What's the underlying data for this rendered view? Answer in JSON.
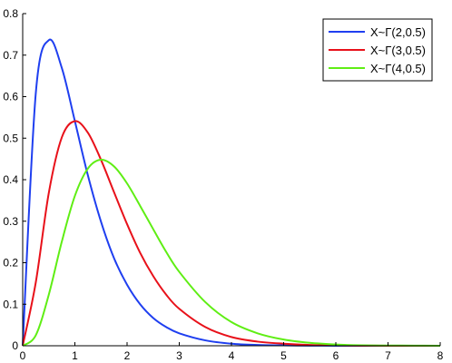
{
  "chart_data": {
    "type": "line",
    "title": "",
    "xlabel": "",
    "ylabel": "",
    "xlim": [
      0,
      8
    ],
    "ylim": [
      0,
      0.8
    ],
    "xticks": [
      0,
      1,
      2,
      3,
      4,
      5,
      6,
      7,
      8
    ],
    "yticks": [
      0,
      0.1,
      0.2,
      0.3,
      0.4,
      0.5,
      0.6,
      0.7,
      0.8
    ],
    "grid": false,
    "legend_position": "top-right",
    "x": [
      0,
      0.25,
      0.5,
      0.75,
      1,
      1.25,
      1.5,
      1.75,
      2,
      2.25,
      2.5,
      2.75,
      3,
      3.5,
      4,
      4.5,
      5,
      5.5,
      6,
      6.5,
      7,
      7.5,
      8
    ],
    "series": [
      {
        "name": "X~Γ(2,0.5)",
        "color": "#1f3ff0",
        "values": [
          0,
          0.607,
          0.736,
          0.669,
          0.541,
          0.41,
          0.299,
          0.211,
          0.147,
          0.1,
          0.067,
          0.045,
          0.03,
          0.013,
          0.005,
          0.002,
          0.001,
          0.0003,
          0.0001,
          0,
          0,
          0,
          0
        ]
      },
      {
        "name": "X~Γ(3,0.5)",
        "color": "#e8111a",
        "values": [
          0,
          0.152,
          0.368,
          0.502,
          0.541,
          0.513,
          0.448,
          0.37,
          0.293,
          0.224,
          0.168,
          0.123,
          0.089,
          0.045,
          0.021,
          0.01,
          0.005,
          0.002,
          0.001,
          0.0003,
          0.0001,
          0,
          0
        ]
      },
      {
        "name": "X~Γ(4,0.5)",
        "color": "#5fee14",
        "values": [
          0,
          0.025,
          0.123,
          0.251,
          0.361,
          0.427,
          0.448,
          0.432,
          0.391,
          0.337,
          0.281,
          0.226,
          0.178,
          0.105,
          0.057,
          0.03,
          0.015,
          0.007,
          0.003,
          0.001,
          0.0006,
          0.0003,
          0.0001
        ]
      }
    ]
  }
}
